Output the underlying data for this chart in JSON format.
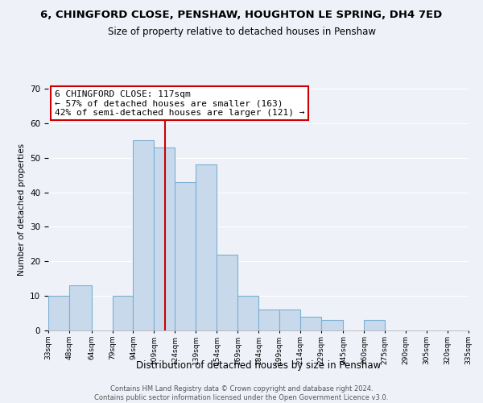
{
  "title": "6, CHINGFORD CLOSE, PENSHAW, HOUGHTON LE SPRING, DH4 7ED",
  "subtitle": "Size of property relative to detached houses in Penshaw",
  "xlabel": "Distribution of detached houses by size in Penshaw",
  "ylabel": "Number of detached properties",
  "bar_color": "#c8d9ec",
  "bar_edge_color": "#7bafd4",
  "bins": [
    33,
    48,
    64,
    79,
    94,
    109,
    124,
    139,
    154,
    169,
    184,
    199,
    214,
    229,
    245,
    260,
    275,
    290,
    305,
    320,
    335
  ],
  "bin_labels": [
    "33sqm",
    "48sqm",
    "64sqm",
    "79sqm",
    "94sqm",
    "109sqm",
    "124sqm",
    "139sqm",
    "154sqm",
    "169sqm",
    "184sqm",
    "199sqm",
    "214sqm",
    "229sqm",
    "245sqm",
    "260sqm",
    "275sqm",
    "290sqm",
    "305sqm",
    "320sqm",
    "335sqm"
  ],
  "counts": [
    10,
    13,
    0,
    10,
    55,
    53,
    43,
    48,
    22,
    10,
    6,
    6,
    4,
    3,
    0,
    3,
    0,
    0,
    0,
    0
  ],
  "ylim": [
    0,
    70
  ],
  "yticks": [
    0,
    10,
    20,
    30,
    40,
    50,
    60,
    70
  ],
  "property_line_x": 117,
  "property_line_color": "#cc0000",
  "annotation_title": "6 CHINGFORD CLOSE: 117sqm",
  "annotation_line1": "← 57% of detached houses are smaller (163)",
  "annotation_line2": "42% of semi-detached houses are larger (121) →",
  "annotation_box_color": "#ffffff",
  "annotation_box_edge_color": "#cc0000",
  "footer_line1": "Contains HM Land Registry data © Crown copyright and database right 2024.",
  "footer_line2": "Contains public sector information licensed under the Open Government Licence v3.0.",
  "background_color": "#eef2f8"
}
